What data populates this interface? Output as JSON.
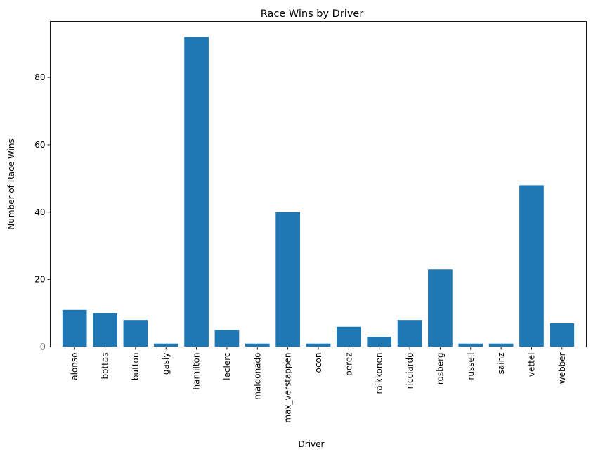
{
  "chart_data": {
    "type": "bar",
    "title": "Race Wins by Driver",
    "xlabel": "Driver",
    "ylabel": "Number of Race Wins",
    "categories": [
      "alonso",
      "bottas",
      "button",
      "gasly",
      "hamilton",
      "leclerc",
      "maldonado",
      "max_verstappen",
      "ocon",
      "perez",
      "raikkonen",
      "ricciardo",
      "rosberg",
      "russell",
      "sainz",
      "vettel",
      "webber"
    ],
    "values": [
      11,
      10,
      8,
      1,
      92,
      5,
      1,
      40,
      1,
      6,
      3,
      8,
      23,
      1,
      1,
      48,
      7
    ],
    "ylim": [
      0,
      96.6
    ],
    "yticks": [
      0,
      20,
      40,
      60,
      80
    ],
    "grid": false,
    "bar_color": "#1f77b4"
  }
}
